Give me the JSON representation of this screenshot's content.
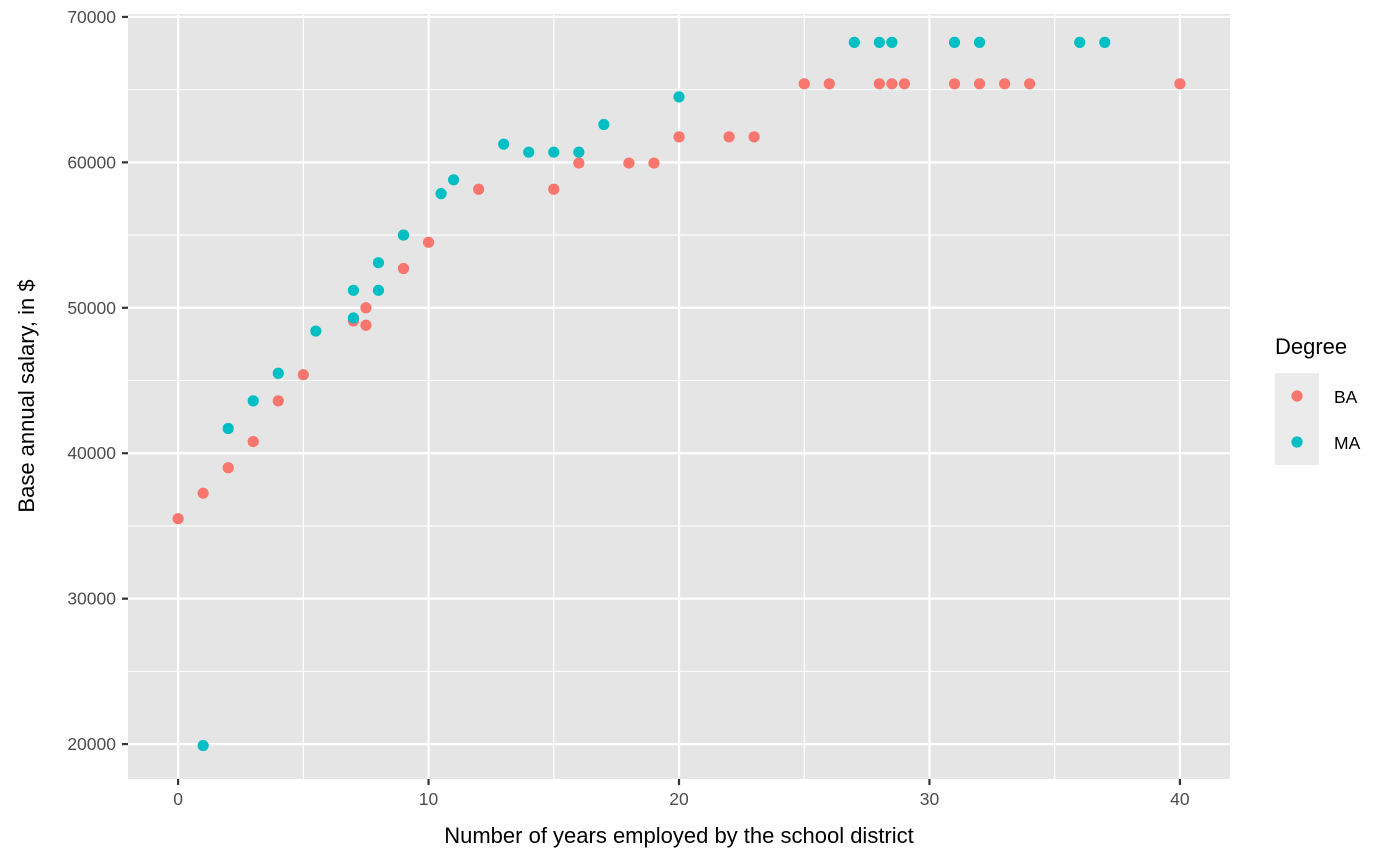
{
  "chart_data": {
    "type": "scatter",
    "title": "",
    "xlabel": "Number of years employed by the school district",
    "ylabel": "Base annual salary, in $",
    "xlim": [
      -2,
      42
    ],
    "ylim": [
      17600,
      70200
    ],
    "x_ticks": [
      0,
      10,
      20,
      30,
      40
    ],
    "x_tick_labels": [
      "0",
      "10",
      "20",
      "30",
      "40"
    ],
    "y_ticks": [
      20000,
      30000,
      40000,
      50000,
      60000,
      70000
    ],
    "y_tick_labels": [
      "20000",
      "30000",
      "40000",
      "50000",
      "60000",
      "70000"
    ],
    "grid": true,
    "legend": {
      "title": "Degree",
      "position": "right"
    },
    "series": [
      {
        "name": "BA",
        "color": "#F8766D",
        "points": [
          [
            0,
            35500
          ],
          [
            1,
            37250
          ],
          [
            2,
            39000
          ],
          [
            3,
            40800
          ],
          [
            4,
            43600
          ],
          [
            5,
            45400
          ],
          [
            7,
            49100
          ],
          [
            7.5,
            48800
          ],
          [
            7.5,
            50000
          ],
          [
            9,
            52700
          ],
          [
            9,
            55000
          ],
          [
            10,
            54500
          ],
          [
            12,
            58150
          ],
          [
            15,
            58150
          ],
          [
            16,
            59950
          ],
          [
            18,
            59950
          ],
          [
            19,
            59950
          ],
          [
            20,
            61750
          ],
          [
            22,
            61750
          ],
          [
            23,
            61750
          ],
          [
            25,
            65400
          ],
          [
            26,
            65400
          ],
          [
            28,
            65400
          ],
          [
            28.5,
            65400
          ],
          [
            29,
            65400
          ],
          [
            31,
            65400
          ],
          [
            32,
            65400
          ],
          [
            33,
            65400
          ],
          [
            34,
            65400
          ],
          [
            40,
            65400
          ]
        ]
      },
      {
        "name": "MA",
        "color": "#00BFC4",
        "points": [
          [
            1,
            19900
          ],
          [
            2,
            41700
          ],
          [
            3,
            43600
          ],
          [
            4,
            45500
          ],
          [
            5.5,
            48400
          ],
          [
            7,
            49300
          ],
          [
            7,
            51200
          ],
          [
            8,
            51200
          ],
          [
            8,
            53100
          ],
          [
            9,
            55000
          ],
          [
            10.5,
            57850
          ],
          [
            11,
            58800
          ],
          [
            13,
            61250
          ],
          [
            14,
            60700
          ],
          [
            15,
            60700
          ],
          [
            16,
            60700
          ],
          [
            17,
            62600
          ],
          [
            20,
            64500
          ],
          [
            27,
            68250
          ],
          [
            28,
            68250
          ],
          [
            28.5,
            68250
          ],
          [
            31,
            68250
          ],
          [
            32,
            68250
          ],
          [
            36,
            68250
          ],
          [
            37,
            68250
          ]
        ]
      }
    ]
  }
}
